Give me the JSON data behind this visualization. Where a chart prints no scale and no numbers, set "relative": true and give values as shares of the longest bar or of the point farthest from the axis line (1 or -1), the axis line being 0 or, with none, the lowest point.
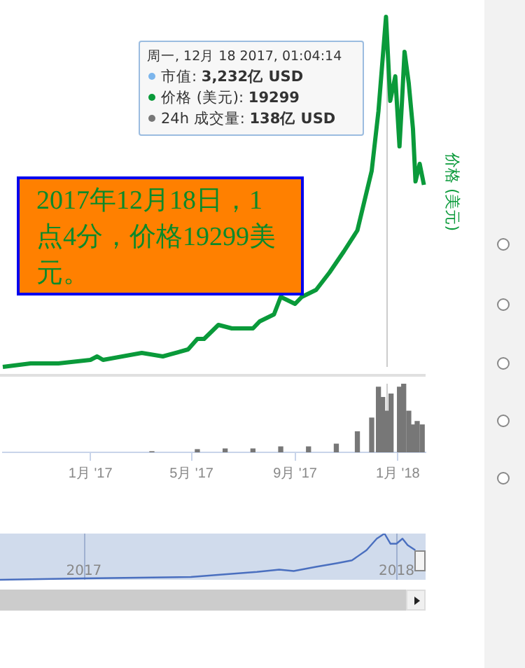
{
  "chart_data": [
    {
      "type": "line",
      "relative": true,
      "ylabel": "价格 (美元)",
      "tick_labels": false,
      "legend": false,
      "xlim": [
        "2016-09-19",
        "2018-02-03"
      ],
      "ref_lines": [
        {
          "axis": "x",
          "value": "2017-12-18",
          "label": null,
          "color": "#cccccc"
        }
      ],
      "annotations": [
        "周一, 12月 18 2017, 01:04:14",
        "市值: 3,232亿 USD",
        "价格 (美元): 19299",
        "24h 成交量: 138亿 USD",
        "2017年12月18日，1点4分，价格19299美元。"
      ],
      "series": [
        {
          "color": "#0a9a3a",
          "x": [
            "2016-09-19",
            "2016-10-22",
            "2016-11-24",
            "2017-01-01",
            "2017-01-09",
            "2017-01-16",
            "2017-03-03",
            "2017-03-28",
            "2017-04-27",
            "2017-05-08",
            "2017-05-16",
            "2017-06-02",
            "2017-06-18",
            "2017-07-13",
            "2017-07-21",
            "2017-08-07",
            "2017-08-15",
            "2017-09-01",
            "2017-09-09",
            "2017-09-26",
            "2017-10-12",
            "2017-10-29",
            "2017-11-14",
            "2017-12-01",
            "2017-12-09",
            "2017-12-14",
            "2017-12-18",
            "2017-12-23",
            "2017-12-29",
            "2018-01-03",
            "2018-01-06",
            "2018-01-09",
            "2018-01-14",
            "2018-01-19",
            "2018-01-22",
            "2018-01-27",
            "2018-02-01"
          ],
          "values": [
            0,
            0.01,
            0.01,
            0.02,
            0.03,
            0.02,
            0.04,
            0.03,
            0.05,
            0.08,
            0.08,
            0.12,
            0.11,
            0.11,
            0.13,
            0.15,
            0.2,
            0.18,
            0.2,
            0.22,
            0.27,
            0.33,
            0.39,
            0.56,
            0.73,
            0.88,
            1,
            0.76,
            0.83,
            0.63,
            0.76,
            0.9,
            0.81,
            0.68,
            0.53,
            0.58,
            0.52
          ]
        }
      ]
    },
    {
      "type": "bar",
      "relative": true,
      "tick_labels": "x",
      "legend": false,
      "xlim": [
        "2016-09-19",
        "2018-02-03"
      ],
      "xticks": [
        {
          "value": "2017-01-01",
          "label": "1月 '17"
        },
        {
          "value": "2017-05-01",
          "label": "5月 '17"
        },
        {
          "value": "2017-09-01",
          "label": "9月 '17"
        },
        {
          "value": "2018-01-01",
          "label": "1月 '18"
        }
      ],
      "ref_lines": [
        {
          "axis": "x",
          "value": "2017-12-18",
          "label": null,
          "color": "#cccccc"
        }
      ],
      "series": [
        {
          "color": "#777777",
          "x": [
            "2017-03-15",
            "2017-05-08",
            "2017-06-10",
            "2017-07-13",
            "2017-08-15",
            "2017-09-17",
            "2017-10-20",
            "2017-11-14",
            "2017-12-01",
            "2017-12-09",
            "2017-12-14",
            "2017-12-18",
            "2017-12-24",
            "2018-01-03",
            "2018-01-08",
            "2018-01-14",
            "2018-01-19",
            "2018-01-24",
            "2018-01-30"
          ],
          "values": [
            0.01,
            0.04,
            0.05,
            0.05,
            0.08,
            0.08,
            0.12,
            0.3,
            0.5,
            0.95,
            0.8,
            0.6,
            0.85,
            0.95,
            1,
            0.6,
            0.4,
            0.45,
            0.4
          ]
        }
      ]
    },
    {
      "type": "line",
      "relative": true,
      "tick_labels": "x",
      "legend": false,
      "grid": "x",
      "xlim": [
        "2016-09-25",
        "2018-02-04"
      ],
      "xticks": [
        {
          "value": "2017-01-01",
          "label": "2017"
        },
        {
          "value": "2018-01-01",
          "label": "2018"
        }
      ],
      "bands": [
        {
          "axis": "x",
          "from": "2016-09-25",
          "to": "2018-02-04",
          "label": null,
          "color": "#d0dbec"
        }
      ],
      "series": [
        {
          "color": "#4a6fbf",
          "x": [
            "2016-09-25",
            "2017-01-01",
            "2017-05-06",
            "2017-06-09",
            "2017-07-22",
            "2017-08-17",
            "2017-09-03",
            "2017-09-29",
            "2017-10-24",
            "2017-11-10",
            "2017-11-27",
            "2017-12-09",
            "2017-12-18",
            "2017-12-25",
            "2018-01-01",
            "2018-01-08",
            "2018-01-14",
            "2018-01-23"
          ],
          "values": [
            0,
            0.03,
            0.06,
            0.11,
            0.17,
            0.22,
            0.19,
            0.28,
            0.36,
            0.42,
            0.64,
            0.89,
            1,
            0.78,
            0.78,
            0.89,
            0.75,
            0.64
          ]
        }
      ]
    }
  ]
}
